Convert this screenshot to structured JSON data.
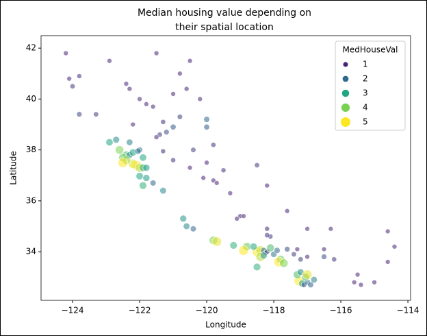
{
  "chart_data": {
    "type": "scatter",
    "title": [
      "Median housing value depending on",
      "their spatial location"
    ],
    "x_label": "Longitude",
    "y_label": "Latitude",
    "xlim": [
      -124.94,
      -113.92
    ],
    "ylim": [
      32.09,
      42.49
    ],
    "xticks": [
      {
        "value": -124,
        "label": "−124"
      },
      {
        "value": -122,
        "label": "−122"
      },
      {
        "value": -120,
        "label": "−120"
      },
      {
        "value": -118,
        "label": "−118"
      },
      {
        "value": -116,
        "label": "−116"
      },
      {
        "value": -114,
        "label": "−114"
      }
    ],
    "yticks": [
      34,
      36,
      38,
      40,
      42
    ],
    "legend": {
      "title": "MedHouseVal",
      "position": "upper right",
      "levels": [
        1,
        2,
        3,
        4,
        5
      ],
      "colors": [
        "#482475",
        "#31688e",
        "#21a685",
        "#7ad151",
        "#fde725"
      ]
    },
    "x": [
      -124.2,
      -124.1,
      -123.8,
      -124.0,
      -122.4,
      -122.3,
      -121.6,
      -121.8,
      -122.9,
      -121.5,
      -120.5,
      -123.3,
      -123.8,
      -122.2,
      -121.3,
      -121.0,
      -121.4,
      -121.5,
      -121.2,
      -120.8,
      -120.0,
      -120.0,
      -122.4,
      -122.3,
      -122.2,
      -122.1,
      -122.2,
      -122.0,
      -121.9,
      -121.8,
      -122.5,
      -122.4,
      -122.6,
      -122.7,
      -122.9,
      -122.3,
      -122.0,
      -121.9,
      -122.05,
      -122.5,
      -122.0,
      -121.9,
      -121.6,
      -121.8,
      -121.3,
      -121.3,
      -121.0,
      -120.5,
      -120.1,
      -119.8,
      -119.7,
      -119.3,
      -119.0,
      -119.1,
      -118.9,
      -120.0,
      -119.5,
      -118.5,
      -118.2,
      -119.8,
      -120.4,
      -117.0,
      -116.5,
      -115.6,
      -115.5,
      -114.6,
      -114.4,
      -114.6,
      -116.3,
      -117.6,
      -118.2,
      -118.1,
      -120.7,
      -120.6,
      -120.4,
      -119.8,
      -119.7,
      -119.2,
      -118.8,
      -118.9,
      -118.5,
      -118.4,
      -118.3,
      -118.25,
      -118.2,
      -118.1,
      -118.4,
      -118.3,
      -118.0,
      -117.9,
      -117.8,
      -117.85,
      -117.7,
      -117.6,
      -117.3,
      -117.4,
      -117.2,
      -117.0,
      -118.6,
      -118.2,
      -118.5,
      -117.25,
      -117.15,
      -117.1,
      -117.0,
      -117.05,
      -117.3,
      -117.2,
      -116.9,
      -117.0,
      -116.8,
      -116.2,
      -116.5,
      -115.4,
      -115.0,
      -120.6,
      -120.2,
      -121.0,
      -120.8,
      -122.0
    ],
    "y": [
      41.8,
      40.8,
      40.9,
      40.5,
      40.6,
      40.4,
      39.7,
      39.8,
      41.5,
      41.8,
      41.5,
      39.4,
      39.4,
      39.0,
      39.1,
      38.9,
      38.6,
      38.5,
      38.7,
      39.3,
      39.2,
      38.9,
      37.8,
      37.8,
      37.9,
      37.4,
      37.45,
      37.3,
      37.3,
      37.3,
      37.7,
      37.6,
      38.0,
      38.4,
      38.3,
      38.3,
      38.0,
      37.7,
      37.95,
      37.5,
      36.97,
      36.6,
      36.7,
      36.9,
      36.4,
      37.95,
      37.6,
      37.3,
      36.9,
      36.8,
      36.7,
      36.3,
      35.4,
      35.3,
      35.4,
      37.5,
      37.2,
      37.4,
      36.6,
      38.2,
      38.0,
      34.9,
      34.1,
      32.8,
      33.1,
      34.8,
      34.2,
      33.6,
      34.9,
      35.6,
      34.9,
      34.6,
      35.3,
      35.0,
      34.9,
      34.45,
      34.4,
      34.25,
      34.2,
      34.05,
      34.0,
      34.05,
      34.05,
      33.95,
      34.0,
      34.15,
      33.8,
      33.85,
      33.9,
      34.05,
      33.7,
      33.6,
      33.55,
      34.1,
      34.1,
      33.9,
      33.7,
      33.8,
      34.2,
      34.65,
      33.4,
      32.85,
      32.75,
      32.7,
      32.8,
      33.0,
      33.1,
      33.2,
      32.7,
      33.1,
      32.9,
      33.7,
      33.8,
      32.7,
      32.8,
      40.4,
      40.0,
      40.2,
      41.0,
      40.0
    ],
    "values": [
      0.8,
      1.0,
      1.1,
      1.3,
      0.9,
      1.0,
      0.9,
      1.0,
      0.7,
      0.6,
      0.6,
      1.3,
      1.5,
      1.0,
      1.2,
      1.8,
      1.3,
      1.1,
      1.6,
      1.4,
      2.0,
      1.8,
      3.5,
      2.5,
      3.0,
      5.0,
      4.8,
      4.5,
      3.2,
      2.8,
      3.8,
      4.2,
      4.0,
      2.6,
      3.0,
      2.4,
      2.0,
      3.0,
      2.2,
      5.0,
      3.0,
      3.2,
      2.0,
      2.8,
      2.5,
      1.1,
      1.2,
      0.9,
      0.8,
      0.9,
      1.0,
      0.7,
      0.9,
      1.0,
      0.8,
      1.0,
      1.1,
      1.3,
      0.9,
      1.2,
      1.4,
      0.8,
      0.9,
      0.8,
      0.7,
      0.6,
      0.6,
      0.7,
      0.5,
      0.7,
      1.1,
      1.2,
      2.7,
      2.5,
      2.0,
      4.0,
      4.8,
      3.2,
      3.8,
      5.0,
      5.0,
      4.6,
      2.0,
      1.2,
      1.5,
      3.5,
      4.5,
      2.8,
      2.2,
      2.0,
      3.8,
      5.0,
      4.0,
      1.6,
      1.0,
      1.3,
      1.4,
      1.0,
      3.0,
      1.3,
      3.2,
      5.0,
      3.0,
      1.5,
      2.2,
      3.4,
      3.5,
      2.6,
      1.9,
      4.8,
      2.4,
      1.2,
      1.6,
      0.8,
      0.7,
      0.8,
      0.9,
      1.0,
      0.7,
      0.8
    ]
  }
}
